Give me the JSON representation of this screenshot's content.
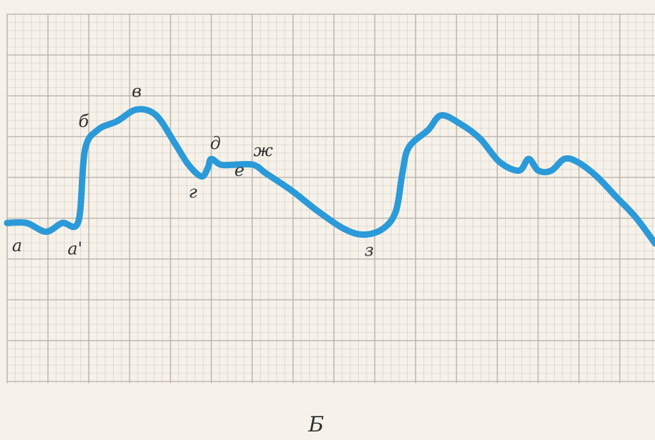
{
  "chart_data": {
    "type": "line",
    "title": "",
    "xlabel": "",
    "ylabel": "",
    "caption": "Б",
    "grid": true,
    "line_color": "#2b9ad8",
    "grid_color": "#b9b3aa",
    "x_range": [
      0,
      100
    ],
    "y_range": [
      0,
      100
    ],
    "series": [
      {
        "points": [
          [
            0,
            38
          ],
          [
            3,
            38
          ],
          [
            6,
            35
          ],
          [
            8.5,
            38
          ],
          [
            11,
            38.5
          ],
          [
            12,
            63
          ],
          [
            14,
            70
          ],
          [
            17,
            73
          ],
          [
            20,
            77
          ],
          [
            23,
            75
          ],
          [
            26,
            65
          ],
          [
            28,
            58
          ],
          [
            30,
            54
          ],
          [
            31,
            57
          ],
          [
            31.5,
            60
          ],
          [
            33,
            58
          ],
          [
            35,
            58
          ],
          [
            38,
            58
          ],
          [
            40,
            55
          ],
          [
            44,
            49
          ],
          [
            48,
            42
          ],
          [
            52,
            36
          ],
          [
            55,
            34
          ],
          [
            58,
            36
          ],
          [
            60,
            42
          ],
          [
            61,
            55
          ],
          [
            62,
            64
          ],
          [
            65,
            70
          ],
          [
            67,
            75
          ],
          [
            70,
            72
          ],
          [
            73,
            67
          ],
          [
            76,
            59
          ],
          [
            79,
            56
          ],
          [
            80.5,
            60
          ],
          [
            82,
            56
          ],
          [
            84,
            56
          ],
          [
            86,
            60
          ],
          [
            88,
            59
          ],
          [
            91,
            54
          ],
          [
            94,
            47
          ],
          [
            97,
            40
          ],
          [
            100,
            31
          ]
        ]
      }
    ],
    "point_labels": [
      {
        "text": "а",
        "x": 0,
        "y": 38
      },
      {
        "text": "а'",
        "x": 8.5,
        "y": 36
      },
      {
        "text": "б",
        "x": 14,
        "y": 70
      },
      {
        "text": "в",
        "x": 20,
        "y": 77
      },
      {
        "text": "г",
        "x": 30,
        "y": 54
      },
      {
        "text": "д",
        "x": 31.5,
        "y": 60
      },
      {
        "text": "е",
        "x": 33,
        "y": 58
      },
      {
        "text": "ж",
        "x": 38,
        "y": 58
      },
      {
        "text": "з",
        "x": 55,
        "y": 34
      }
    ]
  }
}
